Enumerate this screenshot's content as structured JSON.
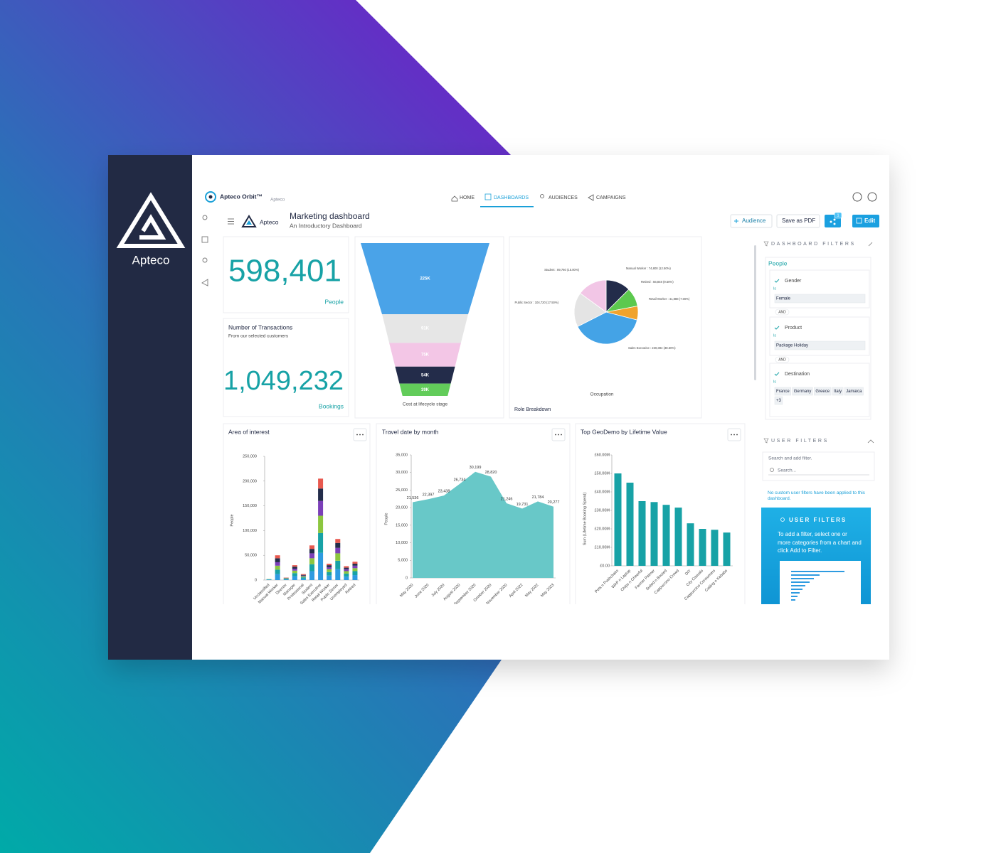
{
  "brand": {
    "name": "Apteco"
  },
  "header": {
    "app": "Apteco Orbit™",
    "system": "Apteco",
    "nav": [
      "HOME",
      "DASHBOARDS",
      "AUDIENCES",
      "CAMPAIGNS"
    ]
  },
  "dashboard": {
    "logo_text": "Apteco",
    "title": "Marketing dashboard",
    "subtitle": "An Introductory Dashboard",
    "buttons": [
      "Audience",
      "Save as PDF",
      "Edit"
    ],
    "share_count": "1"
  },
  "kpis": [
    {
      "value": "598,401",
      "unit": "People"
    },
    {
      "title": "Number of Transactions",
      "subtitle": "From our selected customers",
      "value": "1,049,232",
      "unit": "Bookings"
    }
  ],
  "chart_data": [
    {
      "type": "funnel",
      "caption": "Cost at lifecycle stage",
      "values": [
        225000,
        91000,
        75000,
        54000,
        39000
      ],
      "value_labels": [
        "225K",
        "91K",
        "75K",
        "54K",
        "39K"
      ],
      "colors": [
        "#4aa3e8",
        "#e6e6e6",
        "#f3c6e6",
        "#232c4a",
        "#62cc5a"
      ]
    },
    {
      "type": "pie",
      "title": "Role Breakdown",
      "label": "Occupation",
      "values": [
        12.5,
        9.5,
        7.0,
        38.5,
        17.5,
        15.0
      ],
      "value_labels": [
        "Manual Worker : 74,800 (12.50%)",
        "Retired : 56,848 (9.50%)",
        "Retail Worker : 41,888 (7.00%)",
        "Sales Executive : 230,384 (38.50%)",
        "Public Sector : 104,720 (17.50%)",
        "Student : 89,760 (15.00%)"
      ],
      "colors": [
        "#232c4a",
        "#5cc94e",
        "#f0a32c",
        "#44a3e6",
        "#e4e4e4",
        "#f2c6e6"
      ]
    },
    {
      "type": "stacked_bar",
      "title": "Area of interest",
      "ylabel": "People",
      "categories": [
        "Unclassified",
        "Manual Worker",
        "Director",
        "Manager",
        "Professional",
        "Student",
        "Sales Executive",
        "Retail Worker",
        "Public Sector",
        "Unemployed",
        "Retired"
      ],
      "series": [
        {
          "color": "#2e9be0",
          "values": [
            1000,
            12000,
            1500,
            8000,
            3000,
            18000,
            55000,
            9000,
            22000,
            7000,
            10000
          ]
        },
        {
          "color": "#17a2a6",
          "values": [
            500,
            9000,
            1000,
            6000,
            2500,
            14000,
            40000,
            7000,
            17000,
            6000,
            8000
          ]
        },
        {
          "color": "#8cc63f",
          "values": [
            500,
            8000,
            1000,
            5000,
            2000,
            12000,
            35000,
            6000,
            15000,
            5000,
            6000
          ]
        },
        {
          "color": "#7b3fb8",
          "values": [
            0,
            7000,
            500,
            4000,
            1500,
            10000,
            30000,
            4000,
            11000,
            4000,
            5000
          ]
        },
        {
          "color": "#232c4a",
          "values": [
            0,
            8000,
            500,
            4000,
            1500,
            9000,
            25000,
            4000,
            10000,
            3000,
            4000
          ]
        },
        {
          "color": "#e8594f",
          "values": [
            0,
            6000,
            500,
            3000,
            1500,
            7000,
            20000,
            3000,
            8000,
            3000,
            4000
          ]
        }
      ],
      "ylim": [
        0,
        250000
      ],
      "yticks": [
        0,
        {
          "value": 50000,
          "label": "50,000"
        },
        {
          "value": 100000,
          "label": "100,000"
        },
        {
          "value": 150000,
          "label": "150,000"
        },
        {
          "value": 200000,
          "label": "200,000"
        },
        {
          "value": 250000,
          "label": "250,000"
        }
      ]
    },
    {
      "type": "area",
      "title": "Travel date by month",
      "ylabel": "People",
      "color": "#68c8c8",
      "categories": [
        "May 2020",
        "June 2020",
        "July 2020",
        "August 2020",
        "September 2020",
        "October 2020",
        "November 2020",
        "April 2022",
        "May 2022",
        "May 2023"
      ],
      "values": [
        21536,
        22397,
        23438,
        26734,
        30199,
        28820,
        21246,
        19731,
        21784,
        20277
      ],
      "value_labels": [
        "21,536",
        "22,397",
        "23,438",
        "26,734",
        "30,199",
        "28,820",
        "21,246",
        "19,731",
        "21,784",
        "20,277"
      ],
      "ylim": [
        0,
        35000
      ],
      "yticks": [
        0,
        {
          "value": 5000,
          "label": "5,000"
        },
        {
          "value": 10000,
          "label": "10,000"
        },
        {
          "value": 15000,
          "label": "15,000"
        },
        {
          "value": 20000,
          "label": "20,000"
        },
        {
          "value": 25000,
          "label": "25,000"
        },
        {
          "value": 30000,
          "label": "30,000"
        },
        {
          "value": 35000,
          "label": "35,000"
        }
      ]
    },
    {
      "type": "bar",
      "title": "Top GeoDemo by Lifetime Value",
      "ylabel": "Sum (Lifetime Booking Spend)",
      "color": "#17a2a6",
      "categories": [
        "Pets n Pushchairs",
        "WAP n Laptop",
        "Chips n Cheerful",
        "Farmer Palmer",
        "Suited n Booted",
        "Cappuccino Crowd",
        "DIY",
        "City Casuals",
        "Cappuccino Consumers",
        "Catling n Kebabs"
      ],
      "values": [
        50000000,
        45000000,
        35000000,
        34500000,
        33000000,
        31500000,
        23000000,
        20000000,
        19500000,
        18000000
      ],
      "ylim": [
        0,
        60000000
      ],
      "yticks": [
        {
          "value": 0,
          "label": "£0.00"
        },
        {
          "value": 10000000,
          "label": "£10.00M"
        },
        {
          "value": 20000000,
          "label": "£20.00M"
        },
        {
          "value": 30000000,
          "label": "£30.00M"
        },
        {
          "value": 40000000,
          "label": "£40.00M"
        },
        {
          "value": 50000000,
          "label": "£50.00M"
        },
        {
          "value": 60000000,
          "label": "£60.00M"
        }
      ]
    }
  ],
  "filters": {
    "title": "DASHBOARD FILTERS",
    "group": "People",
    "joiners": [
      "AND",
      "AND"
    ],
    "items": [
      {
        "name": "Gender",
        "op": "Is",
        "values": [
          "Female"
        ]
      },
      {
        "name": "Product",
        "op": "Is",
        "values": [
          "Package Holiday"
        ]
      },
      {
        "name": "Destination",
        "op": "Is",
        "values": [
          "France",
          "Germany",
          "Greece",
          "Italy",
          "Jamaica",
          "+3"
        ]
      }
    ]
  },
  "user_filters": {
    "title": "USER FILTERS",
    "search_label": "Search and add filter.",
    "search_placeholder": "Search...",
    "empty": "No custom user filters have been applied to this dashboard.",
    "tip_title": "USER FILTERS",
    "tip": "To add a filter, select one or more categories from a chart and click Add to Filter."
  }
}
